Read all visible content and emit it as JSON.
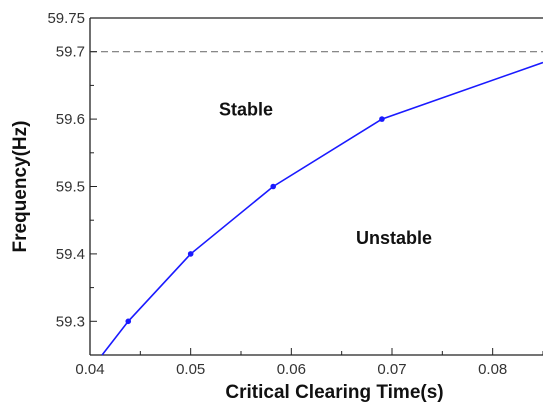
{
  "chart_data": {
    "type": "line",
    "title": "",
    "xlabel": "Critical Clearing Time(s)",
    "ylabel": "Frequency(Hz)",
    "xlim": [
      0.04,
      0.085
    ],
    "ylim": [
      59.25,
      59.75
    ],
    "x_ticks": [
      0.04,
      0.05,
      0.06,
      0.07,
      0.08
    ],
    "x_tick_labels": [
      "0.04",
      "0.05",
      "0.06",
      "0.07",
      "0.08"
    ],
    "y_ticks": [
      59.3,
      59.4,
      59.5,
      59.6,
      59.7,
      59.75
    ],
    "y_tick_labels": [
      "59.3",
      "59.4",
      "59.5",
      "59.6",
      "59.7",
      "59.75"
    ],
    "grid": false,
    "series": [
      {
        "color": "#1a1aff",
        "x": [
          0.0412,
          0.0438,
          0.05,
          0.0582,
          0.069,
          0.085
        ],
        "y": [
          59.25,
          59.3,
          59.4,
          59.5,
          59.6,
          59.684
        ],
        "markers": [
          false,
          true,
          true,
          true,
          true,
          false
        ]
      }
    ],
    "reference_line": {
      "y": 59.7,
      "style": "dashed",
      "color": "#777777"
    },
    "annotations": [
      {
        "text": "Stable",
        "x": 0.0555,
        "y": 59.605
      },
      {
        "text": "Unstable",
        "x": 0.0702,
        "y": 59.415
      }
    ]
  }
}
